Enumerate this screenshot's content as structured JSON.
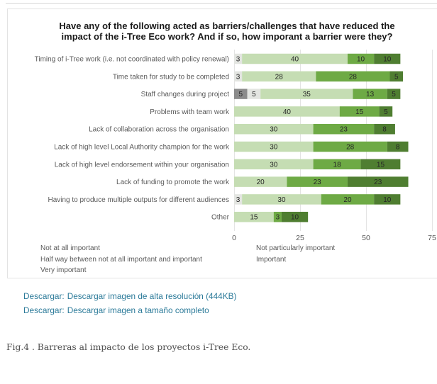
{
  "chart_data": {
    "type": "bar",
    "orientation": "horizontal",
    "stacked": true,
    "title": "Have any of the following acted as barriers/challenges that have reduced the impact of the i-Tree Eco work? And if so, how imporant a barrier were they?",
    "xlabel": "",
    "ylabel": "",
    "categories": [
      "Timing of i-Tree work (i.e. not coordinated with policy renewal)",
      "Time taken for study to be completed",
      "Staff changes during project",
      "Problems with team work",
      "Lack of collaboration across the organisation",
      "Lack of high level Local Authority champion for the work",
      "Lack of high level endorsement within your organisation",
      "Lack of funding to promote the work",
      "Having to produce multiple outputs for different audiences",
      "Other"
    ],
    "series": [
      {
        "name": "Not at all important",
        "color": "#8b8b8b",
        "values": [
          0,
          0,
          5,
          0,
          0,
          0,
          0,
          0,
          0,
          0
        ]
      },
      {
        "name": "Not particularly important",
        "color": "#e3e5e1",
        "values": [
          3,
          3,
          5,
          0,
          0,
          0,
          0,
          0,
          3,
          0
        ]
      },
      {
        "name": "Half way between not at all important and important",
        "color": "#c5ddb3",
        "values": [
          40,
          28,
          35,
          40,
          30,
          30,
          30,
          20,
          30,
          15
        ]
      },
      {
        "name": "Important",
        "color": "#6eaa45",
        "values": [
          10,
          28,
          13,
          15,
          23,
          28,
          18,
          23,
          20,
          3
        ]
      },
      {
        "name": "Very important",
        "color": "#4f7e31",
        "values": [
          10,
          5,
          5,
          5,
          8,
          8,
          15,
          23,
          10,
          10
        ]
      }
    ],
    "xlim": [
      0,
      75
    ],
    "xticks": [
      0,
      25,
      50,
      75
    ],
    "grid": true,
    "legend_position": "bottom"
  },
  "downloads": [
    {
      "prefix": "Descargar:",
      "label": "Descargar imagen de alta resolución (444KB)"
    },
    {
      "prefix": "Descargar:",
      "label": "Descargar imagen a tamaño completo"
    }
  ],
  "caption": "Fig.4 . Barreras al impacto de los proyectos i-Tree Eco."
}
